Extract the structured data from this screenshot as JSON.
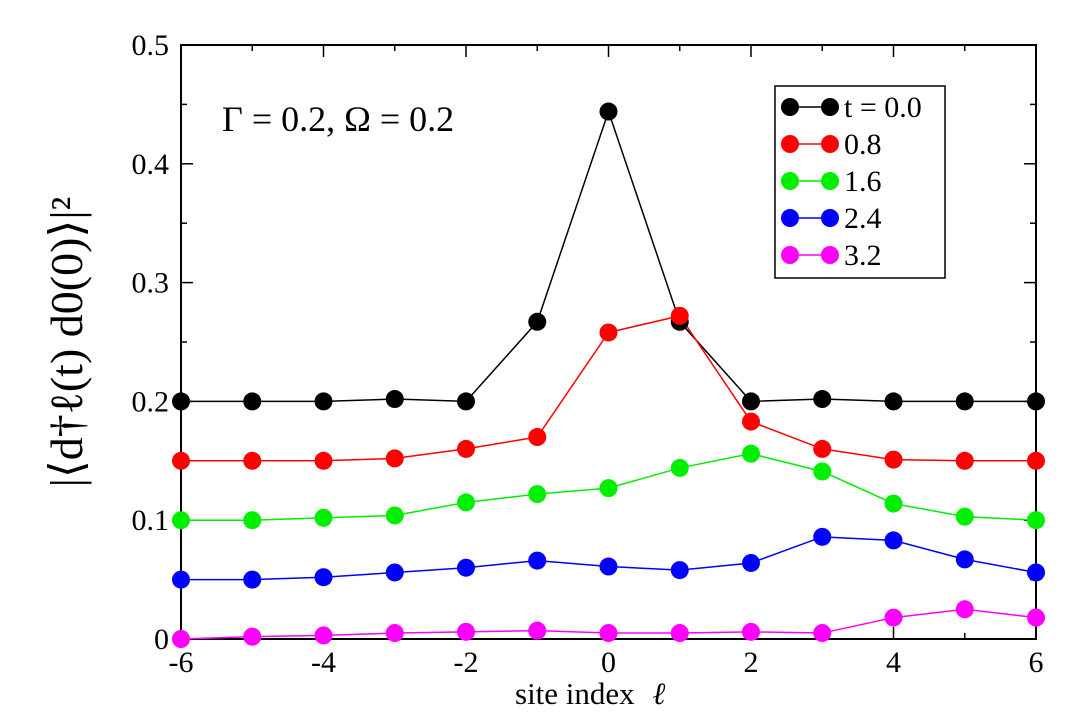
{
  "chart_data": {
    "type": "line",
    "xlabel": "site index",
    "xlabel_symbol": "ℓ",
    "ylabel": "|⟨d†ℓ(t) d0(0)⟩|²",
    "annotation": "Γ = 0.2, Ω = 0.2",
    "xlim": [
      -6,
      6
    ],
    "ylim": [
      0,
      0.5
    ],
    "x_ticks": [
      -6,
      -4,
      -2,
      0,
      2,
      4,
      6
    ],
    "x_tick_labels": [
      "-6",
      "-4",
      "-2",
      "0",
      "2",
      "4",
      "6"
    ],
    "y_ticks": [
      0,
      0.1,
      0.2,
      0.3,
      0.4,
      0.5
    ],
    "y_tick_labels": [
      "0",
      "0.1",
      "0.2",
      "0.3",
      "0.4",
      "0.5"
    ],
    "legend_position": "top-right",
    "x": [
      -6,
      -5,
      -4,
      -3,
      -2,
      -1,
      0,
      1,
      2,
      3,
      4,
      5,
      6
    ],
    "series": [
      {
        "name": "t = 0.0",
        "legend_label": "t = 0.0",
        "color": "#000000",
        "values": [
          0.2,
          0.2,
          0.2,
          0.202,
          0.2,
          0.267,
          0.444,
          0.267,
          0.2,
          0.202,
          0.2,
          0.2,
          0.2
        ]
      },
      {
        "name": "0.8",
        "legend_label": "0.8",
        "color": "#ff0000",
        "values": [
          0.15,
          0.15,
          0.15,
          0.152,
          0.16,
          0.17,
          0.258,
          0.272,
          0.183,
          0.16,
          0.151,
          0.15,
          0.15
        ]
      },
      {
        "name": "1.6",
        "legend_label": "1.6",
        "color": "#00ee00",
        "values": [
          0.1,
          0.1,
          0.102,
          0.104,
          0.115,
          0.122,
          0.127,
          0.144,
          0.156,
          0.141,
          0.114,
          0.103,
          0.1
        ]
      },
      {
        "name": "2.4",
        "legend_label": "2.4",
        "color": "#0000ff",
        "values": [
          0.05,
          0.05,
          0.052,
          0.056,
          0.06,
          0.066,
          0.061,
          0.058,
          0.064,
          0.086,
          0.083,
          0.067,
          0.056
        ]
      },
      {
        "name": "3.2",
        "legend_label": "3.2",
        "color": "#ff00ff",
        "values": [
          0.0,
          0.002,
          0.003,
          0.005,
          0.006,
          0.007,
          0.005,
          0.005,
          0.006,
          0.005,
          0.018,
          0.025,
          0.018
        ]
      }
    ]
  }
}
